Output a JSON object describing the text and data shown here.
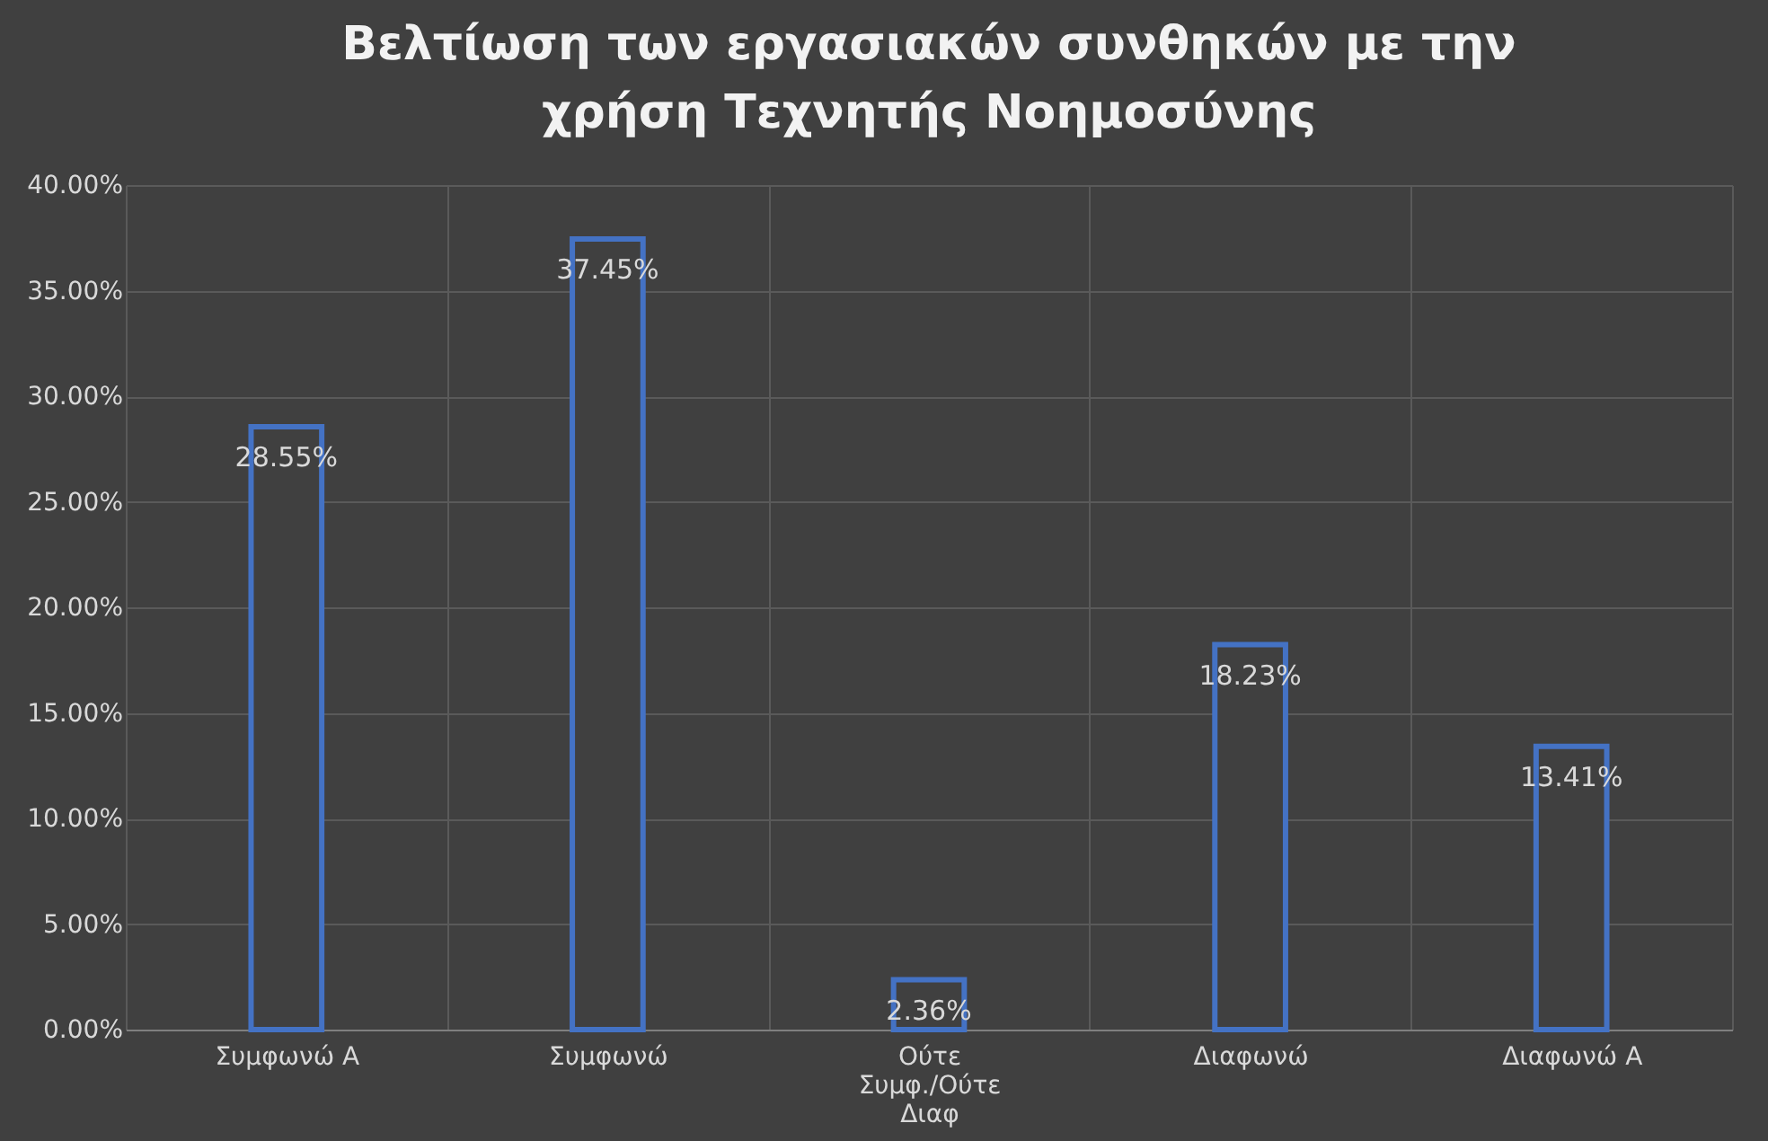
{
  "chart_data": {
    "type": "bar",
    "title": "Βελτίωση των εργασιακών συνθηκών με την χρήση Τεχνητής Νοημοσύνης",
    "categories": [
      "Συμφωνώ Α",
      "Συμφωνώ",
      "Ούτε Συμφ./Ούτε Διαφ",
      "Διαφωνώ",
      "Διαφωνώ Α"
    ],
    "values": [
      28.55,
      37.45,
      2.36,
      18.23,
      13.41
    ],
    "value_labels": [
      "28.55%",
      "37.45%",
      "2.36%",
      "18.23%",
      "13.41%"
    ],
    "color": "#4472c4",
    "ylim": [
      0,
      40
    ],
    "yticks": [
      {
        "value": 0,
        "label": "0.00%"
      },
      {
        "value": 5,
        "label": "5.00%"
      },
      {
        "value": 10,
        "label": "10.00%"
      },
      {
        "value": 15,
        "label": "15.00%"
      },
      {
        "value": 20,
        "label": "20.00%"
      },
      {
        "value": 25,
        "label": "25.00%"
      },
      {
        "value": 30,
        "label": "30.00%"
      },
      {
        "value": 35,
        "label": "35.00%"
      },
      {
        "value": 40,
        "label": "40.00%"
      }
    ],
    "grid": true
  }
}
